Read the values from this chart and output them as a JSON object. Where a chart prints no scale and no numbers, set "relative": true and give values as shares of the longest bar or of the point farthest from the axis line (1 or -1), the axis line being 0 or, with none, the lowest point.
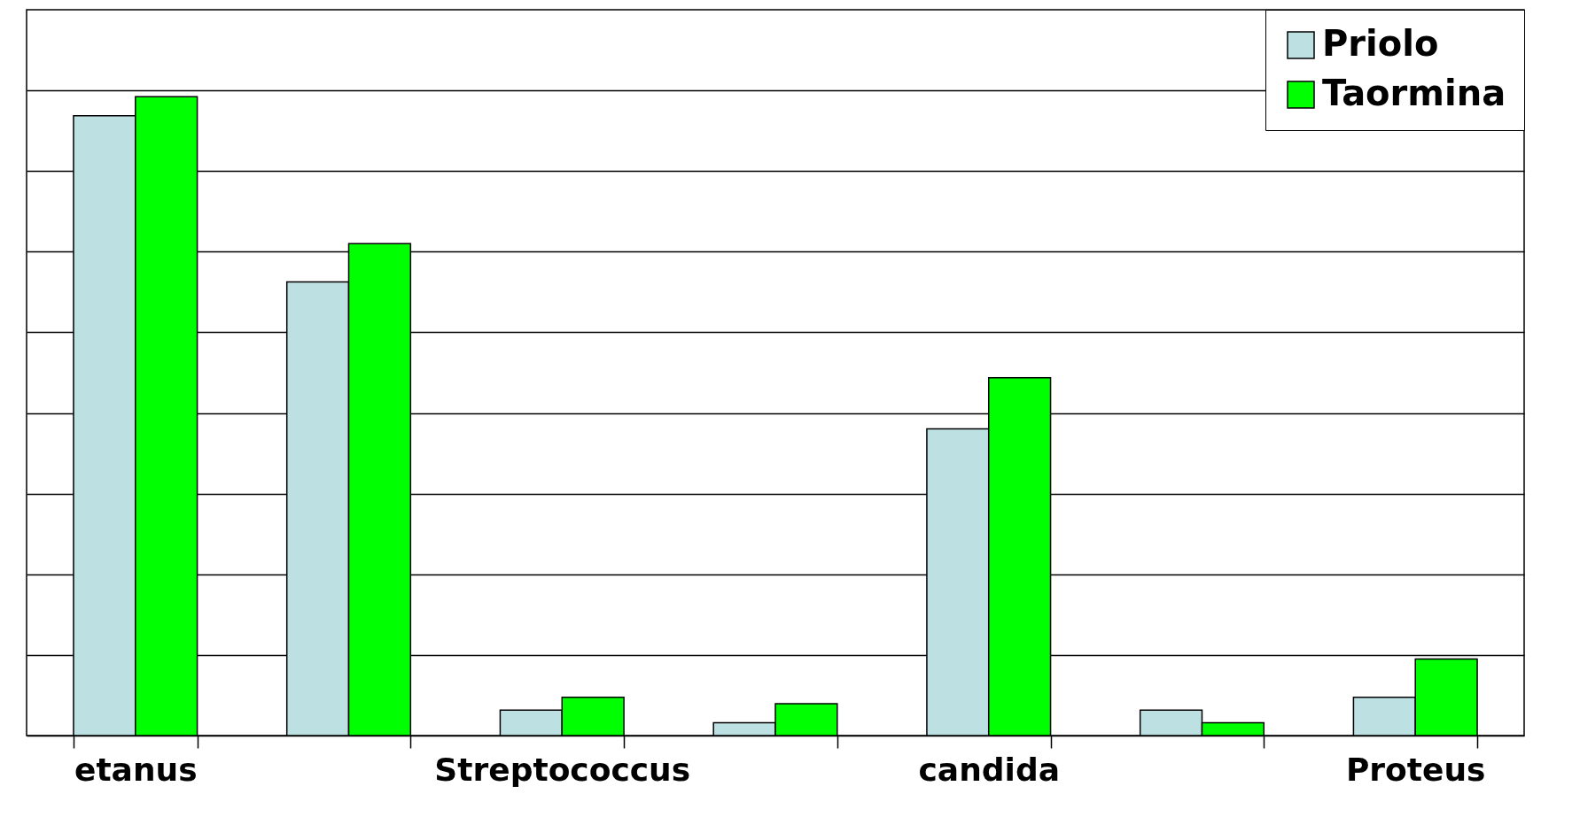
{
  "chart_data": {
    "type": "bar",
    "relative": true,
    "categories": [
      "etanus",
      null,
      "Streptococcus",
      null,
      "candida",
      null,
      "Proteus"
    ],
    "series": [
      {
        "name": "Priolo",
        "color": "#bde0e3",
        "values": [
          0.97,
          0.71,
          0.04,
          0.02,
          0.48,
          0.04,
          0.06
        ]
      },
      {
        "name": "Taormina",
        "color": "#00ff00",
        "values": [
          1,
          0.77,
          0.06,
          0.05,
          0.56,
          0.02,
          0.12
        ]
      }
    ],
    "grid": "y",
    "legend": "top right"
  }
}
